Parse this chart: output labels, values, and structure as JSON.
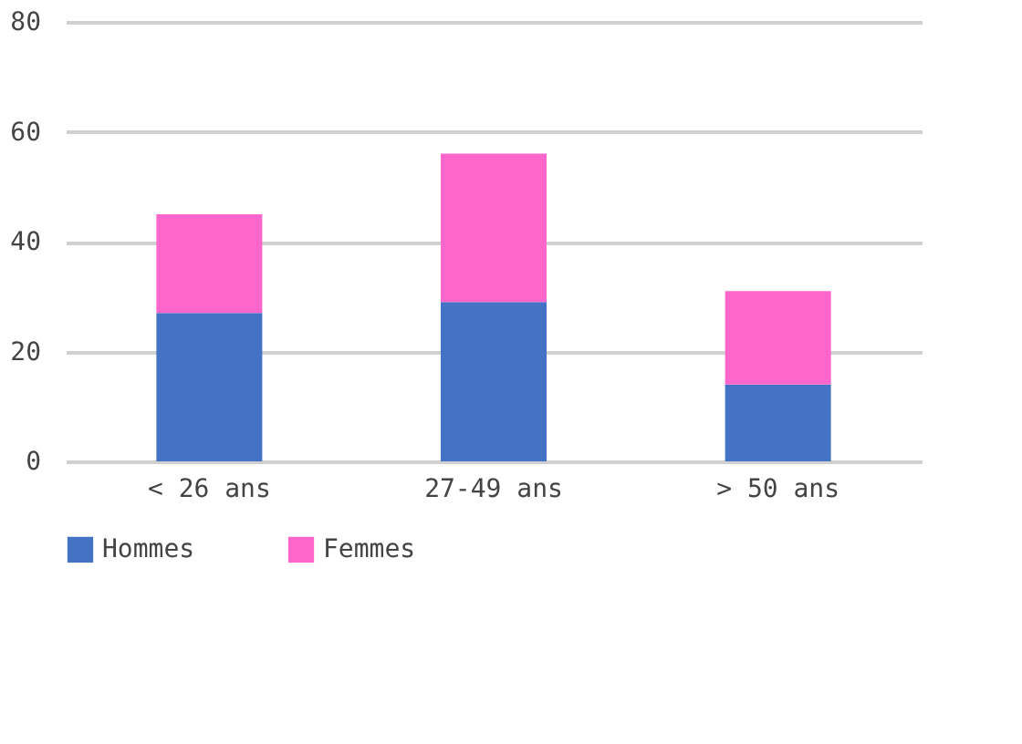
{
  "chart_data": {
    "type": "bar",
    "stacked": true,
    "categories": [
      "< 26 ans",
      "27-49 ans",
      "> 50 ans"
    ],
    "series": [
      {
        "name": "Hommes",
        "color": "#4472c4",
        "values": [
          27,
          29,
          14
        ]
      },
      {
        "name": "Femmes",
        "color": "#ff66cc",
        "values": [
          18,
          27,
          17
        ]
      }
    ],
    "ylim": [
      0,
      80
    ],
    "yticks": [
      0,
      20,
      40,
      60,
      80
    ],
    "grid": "y",
    "legend": "bottom"
  }
}
